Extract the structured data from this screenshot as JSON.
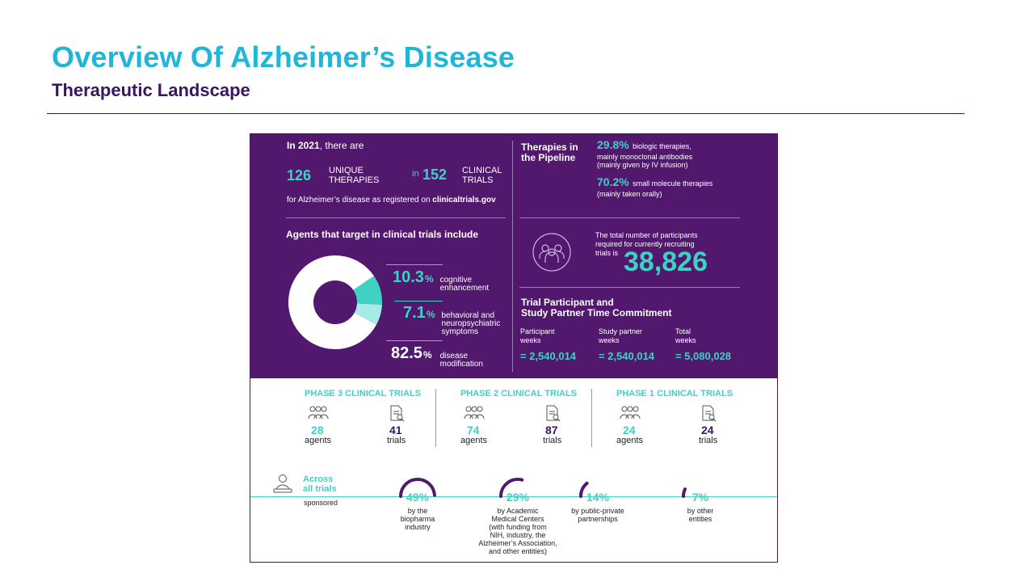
{
  "slide": {
    "title": "Overview Of Alzheimer’s Disease",
    "subtitle": "Therapeutic Landscape"
  },
  "overview": {
    "intro_year": "In 2021",
    "intro_rest": ", there are",
    "therapies_count": "126",
    "therapies_label_1": "UNIQUE",
    "therapies_label_2": "THERAPIES",
    "in_word": "in",
    "trials_count": "152",
    "trials_label_1": "CLINICAL",
    "trials_label_2": "TRIALS",
    "registered_text": "for Alzheimer’s disease as registered on ",
    "registered_site": "clinicaltrials.gov"
  },
  "agents": {
    "heading": "Agents that target in clinical trials include",
    "items": [
      {
        "value": "10.3",
        "sign": "%",
        "desc_1": "cognitive",
        "desc_2": "enhancement",
        "desc_3": ""
      },
      {
        "value": "7.1",
        "sign": "%",
        "desc_1": "behavioral and",
        "desc_2": "neuropsychiatric",
        "desc_3": "symptoms"
      },
      {
        "value": "82.5",
        "sign": "%",
        "desc_1": "disease",
        "desc_2": "modification",
        "desc_3": ""
      }
    ],
    "colors": {
      "cognitive": "#3fd1c4",
      "behavioral": "#a4ece4",
      "disease": "#ffffff"
    }
  },
  "pipeline": {
    "heading_1": "Therapies in",
    "heading_2": "the Pipeline",
    "biologic_pct": "29.8%",
    "biologic_text_1": "biologic therapies,",
    "biologic_text_2": "mainly monoclonal antibodies",
    "biologic_text_3": "(mainly given by IV infusion)",
    "small_pct": "70.2%",
    "small_text_1": "small molecule therapies",
    "small_text_2": "(mainly taken orally)"
  },
  "participants": {
    "text_1": "The total number of participants",
    "text_2": "required for currently recruiting",
    "text_3": "trials is",
    "count": "38,826"
  },
  "commitment": {
    "heading_1": "Trial Participant and",
    "heading_2": "Study Partner Time Commitment",
    "columns": [
      {
        "label_1": "Participant",
        "label_2": "weeks",
        "value": "= 2,540,014"
      },
      {
        "label_1": "Study partner",
        "label_2": "weeks",
        "value": "= 2,540,014"
      },
      {
        "label_1": "Total",
        "label_2": "weeks",
        "value": "= 5,080,028"
      }
    ]
  },
  "phases": [
    {
      "title": "PHASE 3 CLINICAL TRIALS",
      "agents": "28",
      "agents_label": "agents",
      "trials": "41",
      "trials_label": "trials"
    },
    {
      "title": "PHASE 2 CLINICAL TRIALS",
      "agents": "74",
      "agents_label": "agents",
      "trials": "87",
      "trials_label": "trials"
    },
    {
      "title": "PHASE 1 CLINICAL TRIALS",
      "agents": "24",
      "agents_label": "agents",
      "trials": "24",
      "trials_label": "trials"
    }
  ],
  "sponsors": {
    "heading_1": "Across",
    "heading_2": "all trials",
    "sub": "sponsored",
    "items": [
      {
        "pct": "49%",
        "value": 49,
        "desc": [
          "by the",
          "biopharma",
          "industry"
        ]
      },
      {
        "pct": "29%",
        "value": 29,
        "desc": [
          "by Academic",
          "Medical Centers",
          "(with  funding from",
          "NIH, industry, the",
          "Alzheimer’s Association,",
          "and other entities)"
        ]
      },
      {
        "pct": "14%",
        "value": 14,
        "desc": [
          "by public-private",
          "partnerships"
        ]
      },
      {
        "pct": "7%",
        "value": 7,
        "desc": [
          "by other",
          "entities"
        ]
      }
    ]
  },
  "icons": {
    "participants": "people-group-icon",
    "agents": "people-icon",
    "trials": "document-search-icon",
    "sponsor": "person-at-desk-icon"
  }
}
